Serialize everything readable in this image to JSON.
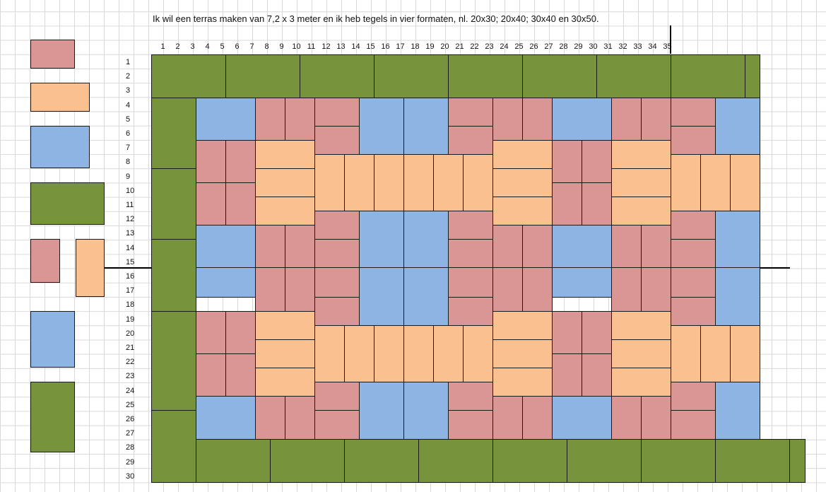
{
  "title": "Ik wil een terras maken van 7,2 x 3 meter en ik heb tegels in vier formaten, nl. 20x30; 20x40; 30x40 en 30x50.",
  "columns": [
    "1",
    "2",
    "3",
    "4",
    "5",
    "6",
    "7",
    "8",
    "9",
    "10",
    "11",
    "12",
    "13",
    "14",
    "15",
    "16",
    "17",
    "18",
    "19",
    "20",
    "21",
    "22",
    "23",
    "24",
    "25",
    "26",
    "27",
    "28",
    "29",
    "30",
    "31",
    "32",
    "33",
    "34",
    "35"
  ],
  "rows": [
    "1",
    "2",
    "3",
    "4",
    "5",
    "6",
    "7",
    "8",
    "9",
    "10",
    "11",
    "12",
    "13",
    "14",
    "15",
    "16",
    "17",
    "18",
    "19",
    "20",
    "21",
    "22",
    "23",
    "24",
    "25",
    "26",
    "27",
    "28",
    "29",
    "30"
  ],
  "colors": {
    "pink": "#da9694",
    "orange": "#fac090",
    "blue": "#8db4e2",
    "green": "#77933c",
    "border": "#1a1a1a"
  },
  "legend": [
    {
      "color": "pink",
      "format": "20x30"
    },
    {
      "color": "orange",
      "format": "20x40"
    },
    {
      "color": "blue",
      "format": "30x40"
    },
    {
      "color": "green",
      "format": "30x50"
    },
    {
      "color": "pink",
      "format": "20x30"
    },
    {
      "color": "orange",
      "format": "20x40"
    },
    {
      "color": "blue",
      "format": "30x40"
    },
    {
      "color": "green",
      "format": "30x50"
    }
  ]
}
